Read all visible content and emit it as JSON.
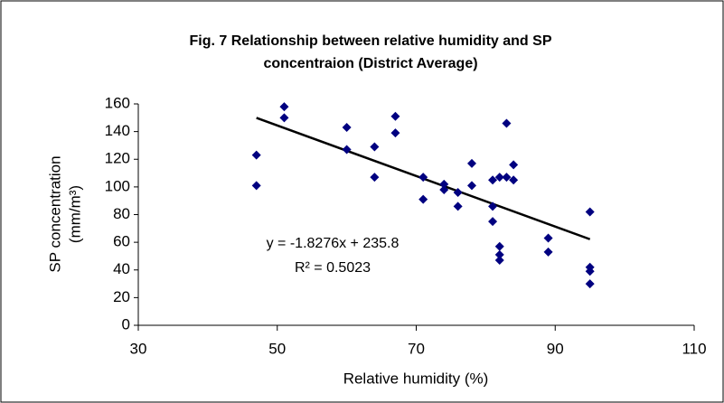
{
  "chart_data": {
    "type": "scatter",
    "title": [
      "Fig. 7 Relationship between relative humidity and SP",
      "concentraion (District Average)"
    ],
    "x_label": "Relative humidity (%)",
    "y_label": [
      "SP concentration",
      "(mm/m³)"
    ],
    "annotations": [
      "y = -1.8276x + 235.8",
      "R² = 0.5023"
    ],
    "xlim": [
      30,
      110
    ],
    "xticks": [
      30,
      50,
      70,
      90,
      110
    ],
    "ylim": [
      0,
      160
    ],
    "yticks": [
      0,
      20,
      40,
      60,
      80,
      100,
      120,
      140,
      160
    ],
    "color": "#000080",
    "x": [
      47,
      47,
      51,
      51,
      60,
      60,
      64,
      64,
      67,
      67,
      71,
      71,
      74,
      74,
      76,
      76,
      78,
      78,
      81,
      81,
      81,
      82,
      82,
      82,
      82,
      83,
      83,
      84,
      84,
      89,
      89,
      95,
      95,
      95,
      95
    ],
    "values": [
      123,
      101,
      158,
      150,
      143,
      127,
      129,
      107,
      151,
      139,
      107,
      91,
      102,
      98,
      96,
      86,
      117,
      101,
      105,
      86,
      75,
      107,
      57,
      51,
      47,
      146,
      107,
      105,
      116,
      63,
      53,
      82,
      42,
      39,
      30
    ],
    "trendline": {
      "color": "#000000",
      "x": [
        47,
        95
      ],
      "y": [
        149.9,
        62.2
      ]
    }
  }
}
